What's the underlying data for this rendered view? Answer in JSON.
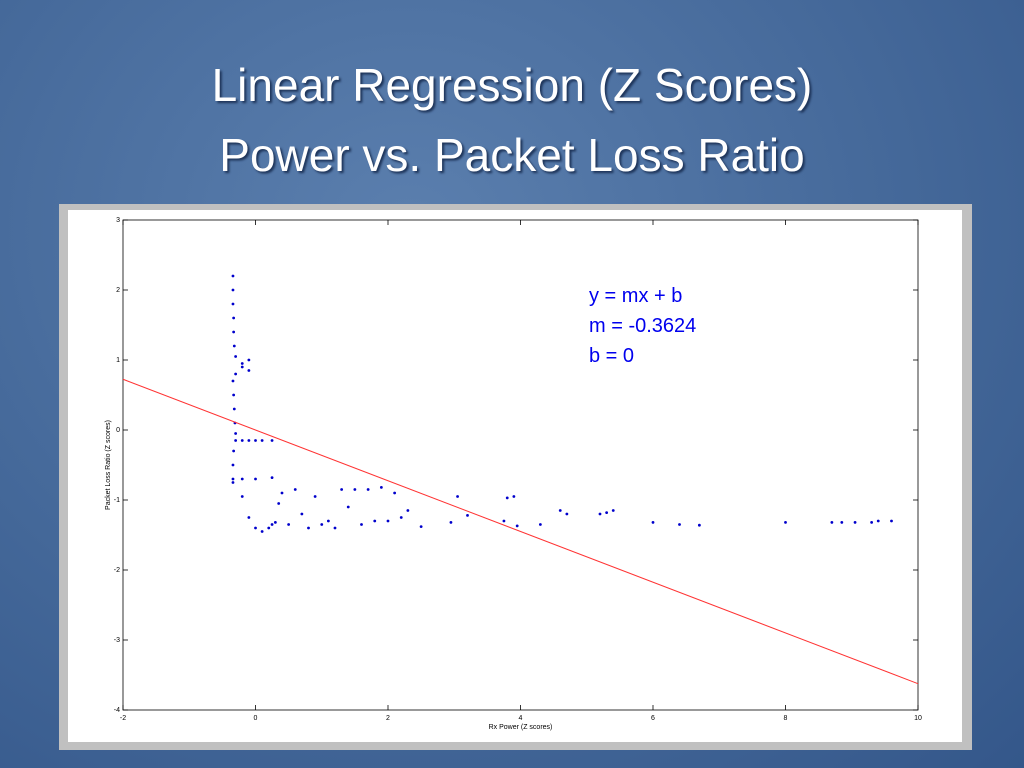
{
  "chart_data": {
    "type": "scatter",
    "title": [
      "Linear Regression (Z Scores)",
      "Power vs. Packet Loss Ratio"
    ],
    "x_label": "Rx Power (Z scores)",
    "y_label": "Packet Loss Ratio (Z scores)",
    "annotations": [
      "y = mx + b",
      "m = -0.3624",
      "b = 0"
    ],
    "xlim": [
      -2,
      10
    ],
    "ylim": [
      -4,
      3
    ],
    "xticks": [
      -2,
      0,
      2,
      4,
      6,
      8,
      10
    ],
    "yticks": [
      -4,
      -3,
      -2,
      -1,
      0,
      1,
      2,
      3
    ],
    "series": [
      {
        "type": "scatter",
        "color": "#0000cc",
        "x": [
          -0.34,
          -0.34,
          -0.34,
          -0.33,
          -0.33,
          -0.32,
          -0.3,
          -0.2,
          -0.1,
          -0.2,
          -0.1,
          -0.3,
          -0.34,
          -0.33,
          -0.32,
          -0.31,
          -0.3,
          -0.3,
          -0.2,
          -0.1,
          0.0,
          0.1,
          0.25,
          -0.33,
          -0.34,
          -0.34,
          -0.2,
          0.0,
          0.25,
          -0.34,
          -0.2,
          -0.1,
          0.0,
          0.1,
          0.2,
          0.25,
          0.3,
          0.35,
          0.4,
          0.5,
          0.6,
          0.7,
          0.8,
          0.9,
          1.0,
          1.1,
          1.2,
          1.3,
          1.4,
          1.5,
          1.6,
          1.7,
          1.8,
          1.9,
          2.0,
          2.1,
          2.2,
          2.3,
          2.5,
          2.95,
          3.05,
          3.2,
          3.75,
          3.8,
          3.9,
          3.95,
          4.3,
          4.6,
          4.7,
          5.2,
          5.3,
          5.4,
          6.0,
          6.4,
          6.7,
          8.0,
          8.7,
          8.85,
          9.05,
          9.3,
          9.4,
          9.6
        ],
        "values": [
          2.2,
          2.0,
          1.8,
          1.6,
          1.4,
          1.2,
          1.05,
          0.95,
          1.0,
          0.9,
          0.85,
          0.8,
          0.7,
          0.5,
          0.3,
          0.1,
          -0.05,
          -0.15,
          -0.15,
          -0.15,
          -0.15,
          -0.15,
          -0.15,
          -0.3,
          -0.5,
          -0.7,
          -0.7,
          -0.7,
          -0.68,
          -0.75,
          -0.95,
          -1.25,
          -1.4,
          -1.45,
          -1.4,
          -1.35,
          -1.32,
          -1.05,
          -0.9,
          -1.35,
          -0.85,
          -1.2,
          -1.4,
          -0.95,
          -1.35,
          -1.3,
          -1.4,
          -0.85,
          -1.1,
          -0.85,
          -1.35,
          -0.85,
          -1.3,
          -0.82,
          -1.3,
          -0.9,
          -1.25,
          -1.15,
          -1.38,
          -1.32,
          -0.95,
          -1.22,
          -1.3,
          -0.97,
          -0.95,
          -1.37,
          -1.35,
          -1.15,
          -1.2,
          -1.2,
          -1.18,
          -1.15,
          -1.32,
          -1.35,
          -1.36,
          -1.32,
          -1.32,
          -1.32,
          -1.32,
          -1.32,
          -1.3,
          -1.3
        ]
      },
      {
        "type": "line",
        "color": "#ff3333",
        "x": [
          -2,
          10
        ],
        "values": [
          0.7248,
          -3.624
        ]
      }
    ]
  }
}
